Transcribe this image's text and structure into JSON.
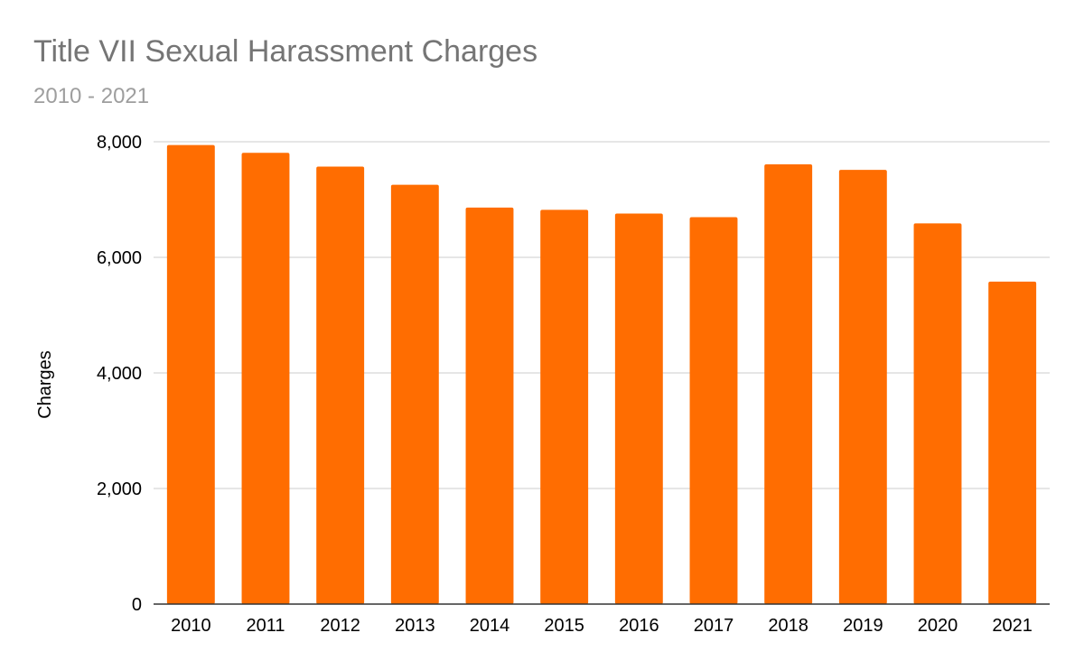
{
  "chart_data": {
    "type": "bar",
    "title": "Title VII Sexual Harassment Charges",
    "subtitle": "2010 - 2021",
    "xlabel": "",
    "ylabel": "Charges",
    "categories": [
      "2010",
      "2011",
      "2012",
      "2013",
      "2014",
      "2015",
      "2016",
      "2017",
      "2018",
      "2019",
      "2020",
      "2021"
    ],
    "series": [
      {
        "values": [
          7944,
          7809,
          7571,
          7256,
          6862,
          6822,
          6758,
          6696,
          7609,
          7514,
          6587,
          5581
        ],
        "color": "#ff6d01"
      }
    ],
    "ylim": [
      0,
      8000
    ],
    "yticks": [
      0,
      2000,
      4000,
      6000,
      8000
    ],
    "ytick_labels": [
      "0",
      "2,000",
      "4,000",
      "6,000",
      "8,000"
    ],
    "grid": true,
    "legend": "none"
  }
}
